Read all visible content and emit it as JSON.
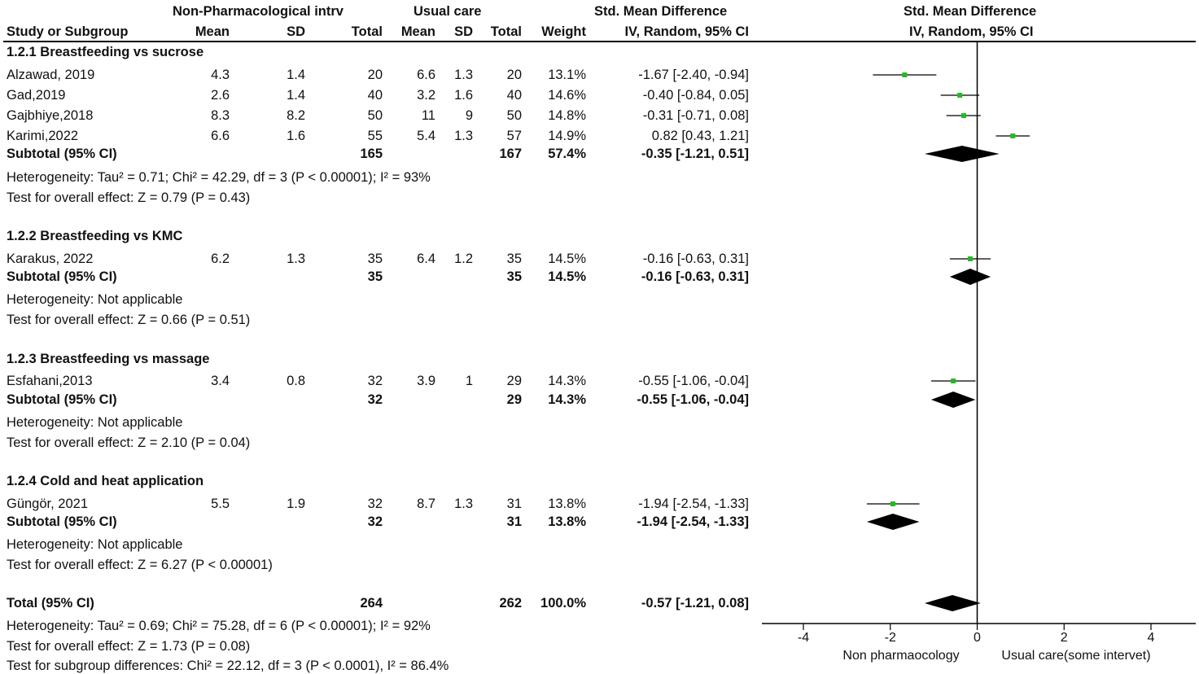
{
  "header": {
    "group1_label": "Non-Pharmacological intrv",
    "group2_label": "Usual care",
    "smd_label": "Std. Mean Difference",
    "smd_label_plot": "Std. Mean Difference",
    "study_col": "Study or Subgroup",
    "mean1": "Mean",
    "sd1": "SD",
    "total1": "Total",
    "mean2": "Mean",
    "sd2": "SD",
    "total2": "Total",
    "weight": "Weight",
    "method": "IV, Random, 95% CI",
    "method_plot": "IV, Random, 95% CI"
  },
  "subgroups": [
    {
      "title": "1.2.1 Breastfeeding vs sucrose",
      "studies": [
        {
          "name": "Alzawad, 2019",
          "m1": "4.3",
          "sd1": "1.4",
          "n1": "20",
          "m2": "6.6",
          "sd2": "1.3",
          "n2": "20",
          "weight": "13.1%",
          "ci": "-1.67 [-2.40, -0.94]"
        },
        {
          "name": "Gad,2019",
          "m1": "2.6",
          "sd1": "1.4",
          "n1": "40",
          "m2": "3.2",
          "sd2": "1.6",
          "n2": "40",
          "weight": "14.6%",
          "ci": "-0.40 [-0.84, 0.05]"
        },
        {
          "name": "Gajbhiye,2018",
          "m1": "8.3",
          "sd1": "8.2",
          "n1": "50",
          "m2": "11",
          "sd2": "9",
          "n2": "50",
          "weight": "14.8%",
          "ci": "-0.31 [-0.71, 0.08]"
        },
        {
          "name": "Karimi,2022",
          "m1": "6.6",
          "sd1": "1.6",
          "n1": "55",
          "m2": "5.4",
          "sd2": "1.3",
          "n2": "57",
          "weight": "14.9%",
          "ci": "0.82 [0.43, 1.21]"
        }
      ],
      "subtotal": {
        "label": "Subtotal (95% CI)",
        "n1": "165",
        "n2": "167",
        "weight": "57.4%",
        "ci": "-0.35 [-1.21, 0.51]"
      },
      "heterogeneity": "Heterogeneity: Tau² = 0.71; Chi² = 42.29, df = 3 (P < 0.00001); I² = 93%",
      "overall": "Test for overall effect: Z = 0.79 (P = 0.43)"
    },
    {
      "title": "1.2.2 Breastfeeding vs KMC",
      "studies": [
        {
          "name": "Karakus, 2022",
          "m1": "6.2",
          "sd1": "1.3",
          "n1": "35",
          "m2": "6.4",
          "sd2": "1.2",
          "n2": "35",
          "weight": "14.5%",
          "ci": "-0.16 [-0.63, 0.31]"
        }
      ],
      "subtotal": {
        "label": "Subtotal (95% CI)",
        "n1": "35",
        "n2": "35",
        "weight": "14.5%",
        "ci": "-0.16 [-0.63, 0.31]"
      },
      "heterogeneity": "Heterogeneity: Not applicable",
      "overall": "Test for overall effect: Z = 0.66 (P = 0.51)"
    },
    {
      "title": "1.2.3 Breastfeeding vs massage",
      "studies": [
        {
          "name": "Esfahani,2013",
          "m1": "3.4",
          "sd1": "0.8",
          "n1": "32",
          "m2": "3.9",
          "sd2": "1",
          "n2": "29",
          "weight": "14.3%",
          "ci": "-0.55 [-1.06, -0.04]"
        }
      ],
      "subtotal": {
        "label": "Subtotal (95% CI)",
        "n1": "32",
        "n2": "29",
        "weight": "14.3%",
        "ci": "-0.55 [-1.06, -0.04]"
      },
      "heterogeneity": "Heterogeneity: Not applicable",
      "overall": "Test for overall effect: Z = 2.10 (P = 0.04)"
    },
    {
      "title": "1.2.4 Cold and heat application",
      "studies": [
        {
          "name": "Güngör, 2021",
          "m1": "5.5",
          "sd1": "1.9",
          "n1": "32",
          "m2": "8.7",
          "sd2": "1.3",
          "n2": "31",
          "weight": "13.8%",
          "ci": "-1.94 [-2.54, -1.33]"
        }
      ],
      "subtotal": {
        "label": "Subtotal (95% CI)",
        "n1": "32",
        "n2": "31",
        "weight": "13.8%",
        "ci": "-1.94 [-2.54, -1.33]"
      },
      "heterogeneity": "Heterogeneity: Not applicable",
      "overall": "Test for overall effect: Z = 6.27 (P < 0.00001)"
    }
  ],
  "total": {
    "label": "Total (95% CI)",
    "n1": "264",
    "n2": "262",
    "weight": "100.0%",
    "ci": "-0.57 [-1.21, 0.08]",
    "heterogeneity": "Heterogeneity: Tau² = 0.69; Chi² = 75.28, df = 6 (P < 0.00001); I² = 92%",
    "overall": "Test for overall effect: Z = 1.73 (P = 0.08)",
    "subgroup_diff": "Test for subgroup differences: Chi² = 22.12, df = 3 (P < 0.0001), I² = 86.4%"
  },
  "colors": {
    "square": "#22bb22",
    "diamond": "#000000",
    "line": "#000000"
  },
  "chart_data": {
    "type": "forest",
    "xlim": [
      -4,
      4
    ],
    "ticks": [
      -4,
      -2,
      0,
      2,
      4
    ],
    "tick_labels": [
      "-4",
      "-2",
      "0",
      "2",
      "4"
    ],
    "xlabel_left": "Non pharmaocology",
    "xlabel_right": "Usual care(some intervet)",
    "studies": [
      {
        "name": "Alzawad, 2019",
        "est": -1.67,
        "lo": -2.4,
        "hi": -0.94
      },
      {
        "name": "Gad,2019",
        "est": -0.4,
        "lo": -0.84,
        "hi": 0.05
      },
      {
        "name": "Gajbhiye,2018",
        "est": -0.31,
        "lo": -0.71,
        "hi": 0.08
      },
      {
        "name": "Karimi,2022",
        "est": 0.82,
        "lo": 0.43,
        "hi": 1.21
      },
      {
        "name": "Karakus, 2022",
        "est": -0.16,
        "lo": -0.63,
        "hi": 0.31
      },
      {
        "name": "Esfahani,2013",
        "est": -0.55,
        "lo": -1.06,
        "hi": -0.04
      },
      {
        "name": "Güngör, 2021",
        "est": -1.94,
        "lo": -2.54,
        "hi": -1.33
      }
    ],
    "diamonds": [
      {
        "name": "Subtotal 1.2.1",
        "est": -0.35,
        "lo": -1.21,
        "hi": 0.51
      },
      {
        "name": "Subtotal 1.2.2",
        "est": -0.16,
        "lo": -0.63,
        "hi": 0.31
      },
      {
        "name": "Subtotal 1.2.3",
        "est": -0.55,
        "lo": -1.06,
        "hi": -0.04
      },
      {
        "name": "Subtotal 1.2.4",
        "est": -1.94,
        "lo": -2.54,
        "hi": -1.33
      },
      {
        "name": "Total",
        "est": -0.57,
        "lo": -1.21,
        "hi": 0.08
      }
    ]
  }
}
